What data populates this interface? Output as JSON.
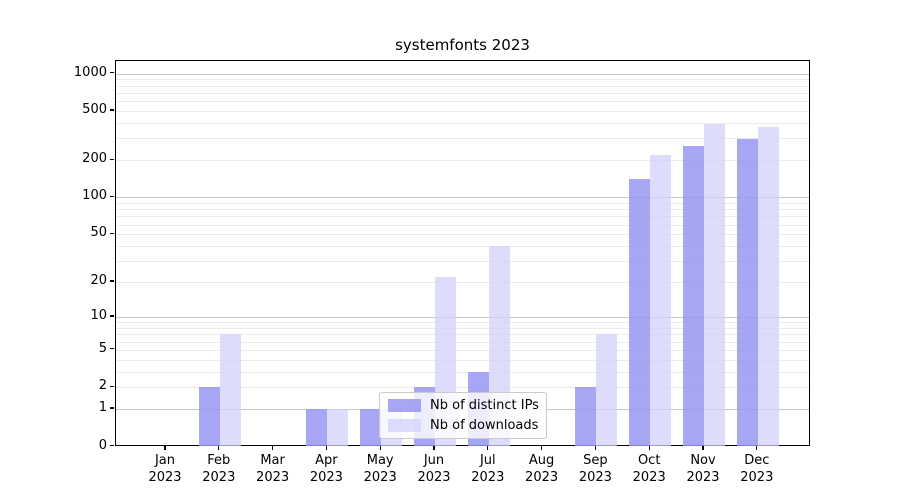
{
  "title": "systemfonts 2023",
  "axes": {
    "y_tick_labels": [
      "0",
      "1",
      "2",
      "5",
      "10",
      "20",
      "50",
      "100",
      "200",
      "500",
      "1000"
    ],
    "x_months": [
      "Jan",
      "Feb",
      "Mar",
      "Apr",
      "May",
      "Jun",
      "Jul",
      "Aug",
      "Sep",
      "Oct",
      "Nov",
      "Dec"
    ],
    "x_year": "2023"
  },
  "legend": {
    "items": [
      {
        "label": "Nb of distinct IPs",
        "color": "rgba(150,150,243,0.85)"
      },
      {
        "label": "Nb of downloads",
        "color": "rgba(210,210,250,0.75)"
      }
    ]
  },
  "colors": {
    "bar_dark": "rgba(150,150,243,0.85)",
    "bar_light": "rgba(210,210,250,0.75)",
    "grid_major": "#c7c7c7",
    "grid_minor": "#ebebeb",
    "spine": "#000000"
  },
  "chart_data": {
    "type": "bar",
    "title": "systemfonts 2023",
    "categories": [
      "Jan 2023",
      "Feb 2023",
      "Mar 2023",
      "Apr 2023",
      "May 2023",
      "Jun 2023",
      "Jul 2023",
      "Aug 2023",
      "Sep 2023",
      "Oct 2023",
      "Nov 2023",
      "Dec 2023"
    ],
    "series": [
      {
        "name": "Nb of distinct IPs",
        "values": [
          0,
          2,
          0,
          1,
          1,
          2,
          3,
          0,
          2,
          140,
          260,
          295
        ]
      },
      {
        "name": "Nb of downloads",
        "values": [
          0,
          7,
          0,
          1,
          1,
          22,
          40,
          0,
          7,
          220,
          390,
          370
        ]
      }
    ],
    "xlabel": "",
    "ylabel": "",
    "y_ticks": [
      0,
      1,
      2,
      5,
      10,
      20,
      50,
      100,
      200,
      500,
      1000
    ],
    "ylim": [
      0,
      1270
    ],
    "yscale": "log10(1+v)",
    "grid": "horizontal, major and log-minor lines",
    "legend_position": "lower center"
  }
}
